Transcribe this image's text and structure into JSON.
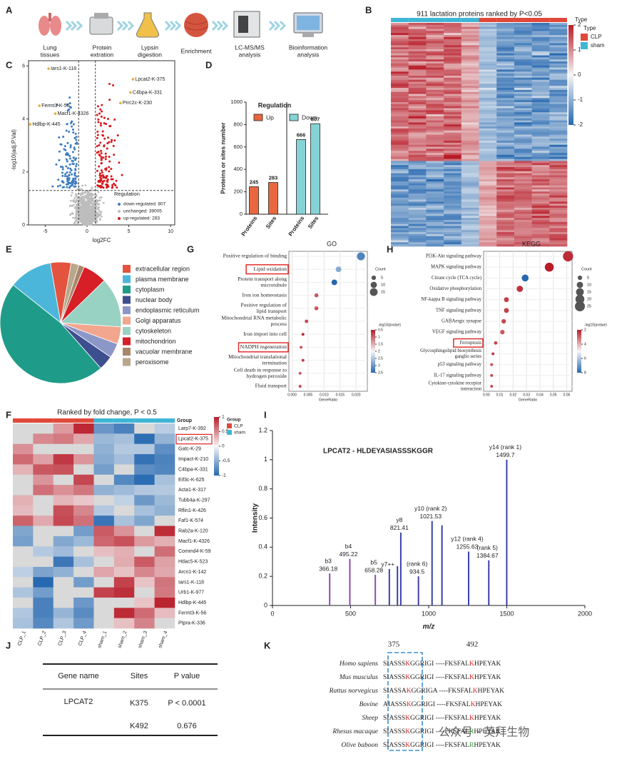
{
  "A": {
    "letter": "A",
    "steps": [
      [
        "Lung",
        "tissues"
      ],
      [
        "Protein",
        "extration"
      ],
      [
        "Lypsin",
        "digestion"
      ],
      [
        "Enrichment"
      ],
      [
        "LC-MS/MS",
        "analysis"
      ],
      [
        "Bioinformation",
        "analysis"
      ]
    ]
  },
  "B": {
    "letter": "B",
    "title": "911 lactation proteins ranked by P<0.05",
    "colorbar_title": "Type",
    "colorbar_ticks": [
      2,
      1,
      0,
      -1,
      -2
    ],
    "legend_title": "Type",
    "groups": [
      {
        "name": "CLP",
        "color": "#e0483a"
      },
      {
        "name": "sham",
        "color": "#3fb6d6"
      }
    ]
  },
  "C": {
    "letter": "C",
    "type": "scatter",
    "xlabel": "log2FC",
    "ylabel": "-log10(adj.P.Val)",
    "xlim": [
      -7,
      10.5
    ],
    "ylim": [
      0,
      6.2
    ],
    "xticks": [
      -5,
      0,
      5,
      10
    ],
    "yticks": [
      0,
      2,
      4,
      6
    ],
    "fc_cutoff": 1,
    "p_cutoff": 1.3,
    "annotations": [
      {
        "text": "Iars1-K-118",
        "x": -4.6,
        "y": 5.9
      },
      {
        "text": "Lpcat2-K-375",
        "x": 5.5,
        "y": 5.5
      },
      {
        "text": "C4bpa-K-331",
        "x": 5.2,
        "y": 5.0
      },
      {
        "text": "Prrc2c-K-230",
        "x": 4.0,
        "y": 4.6
      },
      {
        "text": "Fermt3-K-56",
        "x": -5.7,
        "y": 4.5
      },
      {
        "text": "Macf1-K-4326",
        "x": -3.8,
        "y": 4.2
      },
      {
        "text": "Hdlbp-K-445",
        "x": -6.8,
        "y": 3.8
      }
    ],
    "legend_title": "Regulation",
    "legend": [
      {
        "name": "down-regulated: 807",
        "color": "#3d7cc0"
      },
      {
        "name": "unchanged: 39005",
        "color": "#bdbdbd"
      },
      {
        "name": "up-regulated: 283",
        "color": "#d7191c"
      }
    ]
  },
  "D": {
    "letter": "D",
    "type": "bar",
    "title": "Regulation",
    "ylabel": "Proteins or sites number",
    "categories": [
      "Proteins",
      "Sites"
    ],
    "series": [
      {
        "name": "Up",
        "color": "#e8673e",
        "values": [
          245,
          283
        ]
      },
      {
        "name": "Down",
        "color": "#86d3d6",
        "values": [
          666,
          807
        ]
      }
    ],
    "ylim": [
      0,
      1000
    ],
    "yticks": [
      0,
      200,
      400,
      600,
      800,
      1000
    ]
  },
  "E": {
    "letter": "E",
    "type": "pie",
    "categories": [
      "extracellular region",
      "plasma membrane",
      "cytoplasm",
      "nuclear body",
      "endoplasmic reticulum",
      "Golgi apparatus",
      "cytoskeleton",
      "mitochondrion",
      "vacuolar membrane",
      "peroxisome"
    ],
    "values": [
      5.5,
      11.6,
      47.2,
      3.9,
      3.9,
      4.6,
      13.3,
      6.4,
      1.5,
      2.1
    ],
    "colors": [
      "#e4533d",
      "#4cb6da",
      "#1f9c89",
      "#3d4f8e",
      "#8d97c7",
      "#f2a68e",
      "#97d2c3",
      "#d61f26",
      "#a9866b",
      "#b9a78c"
    ]
  },
  "G": {
    "letter": "G",
    "type": "dotplot",
    "title": "GO",
    "xlabel": "GeneRatio",
    "size_title": "Count",
    "color_title": "-log10(pvalue)",
    "terms": [
      [
        "Positive regulation of binding"
      ],
      [
        "Lipid oxidation"
      ],
      [
        "Protein transport along",
        "microtubule"
      ],
      [
        "Iron ion homeostasis"
      ],
      [
        "Positive regulation of",
        "lipid transport"
      ],
      [
        "Mitochondrial RNA metabolic",
        "process"
      ],
      [
        "Iron import into cell"
      ],
      [
        "NADPH regeneration"
      ],
      [
        "Mitochondrial translational",
        "termination"
      ],
      [
        "Cell death in response to",
        "hydrogen peroxide"
      ],
      [
        "Fluid transport"
      ]
    ],
    "highlight": [
      false,
      true,
      false,
      false,
      false,
      false,
      false,
      true,
      false,
      false,
      false
    ],
    "x": [
      0.0215,
      0.0145,
      0.0132,
      0.0076,
      0.0076,
      0.0045,
      0.0034,
      0.0028,
      0.0034,
      0.0025,
      0.0025
    ],
    "count": [
      16,
      8,
      8,
      4,
      4,
      3,
      2,
      2,
      2,
      2,
      2
    ],
    "pvalue": [
      3.2,
      2.8,
      3.5,
      0.9,
      0.9,
      0.8,
      0.6,
      0.9,
      0.7,
      0.9,
      0.8
    ],
    "xlim": [
      -0.001,
      0.0235
    ],
    "xticks": [
      {
        "value": 0,
        "label": "0.000"
      },
      {
        "value": 0.005,
        "label": "0.005"
      },
      {
        "value": 0.01,
        "label": "0.010"
      },
      {
        "value": 0.015,
        "label": "0.015"
      },
      {
        "value": 0.02,
        "label": "0.020"
      }
    ],
    "size_ticks": [
      5,
      10,
      15
    ],
    "color_lim": [
      0.5,
      3.5
    ],
    "color_ticks": [
      0.5,
      1,
      1.5,
      2,
      2.5,
      3,
      3.5
    ]
  },
  "H": {
    "letter": "H",
    "type": "dotplot",
    "title": "KEGG",
    "xlabel": "GeneRatio",
    "size_title": "Count",
    "color_title": "-log10(pvalue)",
    "terms": [
      [
        "PI3K-Akt signaling pathway"
      ],
      [
        "MAPK signaling pathway"
      ],
      [
        "Citrate cycle (TCA cycle)"
      ],
      [
        "Oxidative phosphorylation"
      ],
      [
        "NF-kappa B signaling pathway"
      ],
      [
        "TNF signaling pathway"
      ],
      [
        "GABAergic synapse"
      ],
      [
        "VEGF signaling pathway"
      ],
      [
        "Ferroptosis"
      ],
      [
        "Glycosphingolipid biosynthesis",
        "ganglio series"
      ],
      [
        "p53 signaling pathway"
      ],
      [
        "IL-17 signaling pathway"
      ],
      [
        "Cytokine-cytokine receptor",
        "interaction"
      ]
    ],
    "highlight": [
      false,
      false,
      false,
      false,
      false,
      false,
      false,
      false,
      true,
      false,
      false,
      false,
      false
    ],
    "x": [
      0.061,
      0.047,
      0.029,
      0.025,
      0.015,
      0.015,
      0.013,
      0.012,
      0.007,
      0.005,
      0.004,
      0.004,
      0.004
    ],
    "count": [
      26,
      20,
      12,
      10,
      6,
      6,
      5,
      5,
      3,
      2,
      2,
      2,
      2
    ],
    "pvalue": [
      2.2,
      2.0,
      8.0,
      2.3,
      2.5,
      2.5,
      2.6,
      2.8,
      2.6,
      2.4,
      2.7,
      2.6,
      2.6
    ],
    "xlim": [
      -0.002,
      0.064
    ],
    "xticks": [
      {
        "value": 0,
        "label": "0.00"
      },
      {
        "value": 0.01,
        "label": "0.01"
      },
      {
        "value": 0.02,
        "label": "0.02"
      },
      {
        "value": 0.03,
        "label": "0.03"
      },
      {
        "value": 0.04,
        "label": "0.04"
      },
      {
        "value": 0.05,
        "label": "0.05"
      },
      {
        "value": 0.06,
        "label": "0.06"
      }
    ],
    "size_ticks": [
      5,
      10,
      15,
      20,
      25
    ],
    "color_lim": [
      2,
      8
    ],
    "color_ticks": [
      2,
      4,
      6,
      8
    ]
  },
  "F": {
    "letter": "F",
    "title": "Ranked by fold change, P < 0.5",
    "group_label": "Group",
    "legend_title": "Group",
    "groups": [
      {
        "name": "CLP",
        "color": "#e0483a"
      },
      {
        "name": "sham",
        "color": "#3fb6d6"
      }
    ],
    "columns": [
      "CLP_1",
      "CLP_2",
      "CLP_3",
      "CLP_4",
      "sham_1",
      "sham_2",
      "sham_3",
      "sham_4"
    ],
    "rows": [
      "Larp7-K-392",
      "Lpcat2-K-375",
      "Gatc-K-29",
      "Impact-K-210",
      "C4bpa-K-331",
      "Eif3c-K-625",
      "Acta1-K-317",
      "Tubb4a-K-297",
      "Rflin1-K-426",
      "Faf1-K-574",
      "Rab2a-K-120",
      "Macf1-K-4326",
      "Commd4-K-59",
      "Hdac5-K-523",
      "Arcn1-K-142",
      "Iars1-K-118",
      "Urb1-K-977",
      "Hdlbp-K-445",
      "Fermt3-K-56",
      "Ptpra-K-336"
    ],
    "highlight_row": "Lpcat2-K-375",
    "colorbar_ticks": [
      1,
      0.5,
      0,
      -0.5,
      -1
    ]
  },
  "I": {
    "letter": "I",
    "type": "spectrum",
    "title": "LPCAT2 - HLDEYASIASSSKGGR",
    "xlabel": "m/z",
    "ylabel": "Intensity",
    "xlim": [
      0,
      2000
    ],
    "ylim": [
      0,
      1.2
    ],
    "xticks": [
      0,
      500,
      1000,
      1500,
      2000
    ],
    "yticks": [
      0,
      0.2,
      0.4,
      0.6,
      0.8,
      1,
      1.2
    ],
    "peaks": [
      {
        "mz": 366.18,
        "intensity": 0.22,
        "color": "#8a4cb0",
        "labels": [
          "b3",
          "366.18"
        ]
      },
      {
        "mz": 495.22,
        "intensity": 0.32,
        "color": "#8a4cb0",
        "labels": [
          "b4",
          "495.22"
        ]
      },
      {
        "mz": 658.28,
        "intensity": 0.21,
        "color": "#8a4cb0",
        "labels": [
          "b5",
          "658.28"
        ]
      },
      {
        "mz": 748,
        "intensity": 0.25,
        "color": "#3a3fa8",
        "labels": [
          "y7++"
        ]
      },
      {
        "mz": 800,
        "intensity": 0.27,
        "color": "#3a3fa8"
      },
      {
        "mz": 821.41,
        "intensity": 0.5,
        "color": "#3a3fa8",
        "labels": [
          "y8",
          "821.41"
        ]
      },
      {
        "mz": 934.5,
        "intensity": 0.2,
        "color": "#3a3fa8",
        "labels": [
          "(rank 6)",
          "934.5"
        ]
      },
      {
        "mz": 1021.53,
        "intensity": 0.58,
        "color": "#3a3fa8",
        "labels": [
          "y10 (rank 2)",
          "1021.53"
        ]
      },
      {
        "mz": 1085,
        "intensity": 0.55,
        "color": "#3a3fa8"
      },
      {
        "mz": 1255.63,
        "intensity": 0.37,
        "color": "#3a3fa8",
        "labels": [
          "y12 (rank 4)",
          "1255.63"
        ]
      },
      {
        "mz": 1384.67,
        "intensity": 0.31,
        "color": "#3a3fa8",
        "labels": [
          "(rank 5)",
          "1384.67"
        ]
      },
      {
        "mz": 1499.7,
        "intensity": 1.0,
        "color": "#3a3fa8",
        "labels": [
          "y14 (rank 1)",
          "1499.7"
        ]
      }
    ]
  },
  "J": {
    "letter": "J",
    "header": [
      "Gene name",
      "Sites",
      "P value"
    ],
    "gene": "LPCAT2",
    "sites": [
      "K375",
      "K492"
    ],
    "p_values": [
      "P < 0.0001",
      0.676
    ]
  },
  "K": {
    "letter": "K",
    "positions": [
      375,
      492
    ],
    "species": [
      "Homo sapiens",
      "Mus musculus",
      "Rattus norvegicus",
      "Bovine",
      "Sheep",
      "Rhesus macaque",
      "Olive baboon"
    ],
    "sequences": [
      [
        "SIASSS",
        "K",
        "GGRIG",
        "I ----FKSFAL",
        "K",
        "HPEYAK"
      ],
      [
        "SIASSS",
        "K",
        "GGRIG",
        "I ----FKSFAL",
        "K",
        "HPEYAK"
      ],
      [
        "SIASSA",
        "K",
        "GGRIG",
        "A ----FKSFAL",
        "K",
        "HPEYAK"
      ],
      [
        "AIASSS",
        "K",
        "GGRIG",
        "I ----FKSFAL",
        "K",
        "HPEYAK"
      ],
      [
        "SIASSS",
        "K",
        "GGRIG",
        "I ----FKSFAL",
        "K",
        "HPEYAK"
      ],
      [
        "SIASSS",
        "K",
        "GGRIG",
        "I ----FKSFAL",
        "R",
        "HPEYAK"
      ],
      [
        "SIASSS",
        "K",
        "GGRIG",
        "I ----FKSFAL",
        "R",
        "HPEYAK"
      ]
    ]
  },
  "watermark": "公众号 · 英拜生物"
}
